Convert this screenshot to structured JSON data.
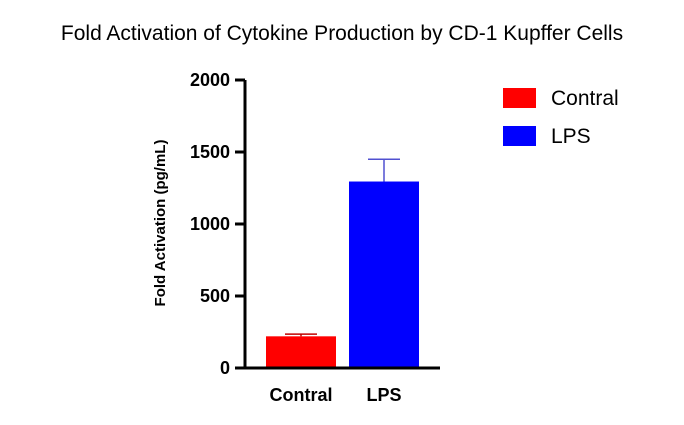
{
  "chart_data": {
    "type": "bar",
    "title": "Fold Activation of Cytokine Production by CD-1 Kupffer Cells",
    "xlabel": "",
    "ylabel": "Fold Activation (pg/mL)",
    "categories": [
      "Contral",
      "LPS"
    ],
    "values": [
      220,
      1295
    ],
    "error_bars": [
      15,
      155
    ],
    "colors": [
      "#ff0000",
      "#0000ff"
    ],
    "error_colors": [
      "#c00000",
      "#5050d0"
    ],
    "ylim": [
      0,
      2000
    ],
    "yticks": [
      0,
      500,
      1000,
      1500,
      2000
    ],
    "ytick_labels": [
      "0",
      "500",
      "1000",
      "1500",
      "2000"
    ],
    "grid": false,
    "legend_position": "top-right",
    "legend": [
      {
        "label": "Contral",
        "color": "#ff0000"
      },
      {
        "label": "LPS",
        "color": "#0000ff"
      }
    ]
  }
}
